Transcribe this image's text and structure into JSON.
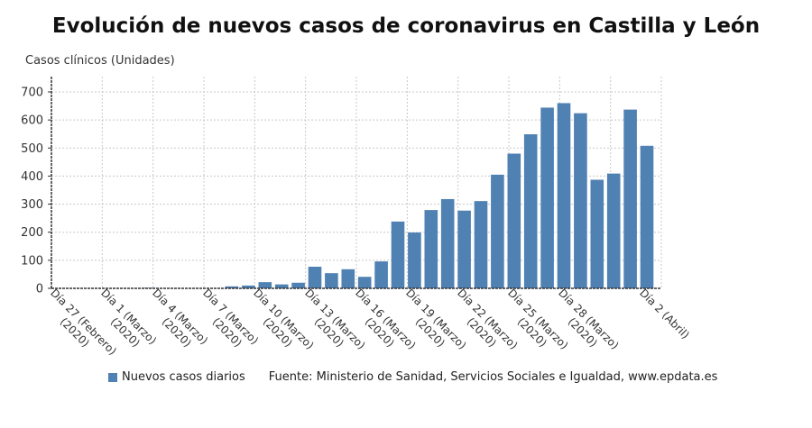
{
  "chart_data": {
    "type": "bar",
    "title": "Evolución de nuevos casos de coronavirus en Castilla y León",
    "ylabel": "Casos clínicos (Unidades)",
    "xlabel": "",
    "ylim": [
      0,
      700
    ],
    "yticks": [
      0,
      100,
      200,
      300,
      400,
      500,
      600,
      700
    ],
    "grid": true,
    "bar_color": "#4f81b3",
    "categories": [
      "27 Feb",
      "28 Feb",
      "29 Feb",
      "1 Mar",
      "2 Mar",
      "3 Mar",
      "4 Mar",
      "5 Mar",
      "6 Mar",
      "7 Mar",
      "8 Mar",
      "9 Mar",
      "10 Mar",
      "11 Mar",
      "12 Mar",
      "13 Mar",
      "14 Mar",
      "15 Mar",
      "16 Mar",
      "17 Mar",
      "18 Mar",
      "19 Mar",
      "20 Mar",
      "21 Mar",
      "22 Mar",
      "23 Mar",
      "24 Mar",
      "25 Mar",
      "26 Mar",
      "27 Mar",
      "28 Mar",
      "29 Mar",
      "30 Mar",
      "31 Mar",
      "1 Abr",
      "2 Abr"
    ],
    "series": [
      {
        "name": "Nuevos casos diarios",
        "values": [
          0,
          0,
          0,
          0,
          0,
          2,
          0,
          0,
          0,
          0,
          7,
          10,
          22,
          14,
          20,
          77,
          54,
          68,
          41,
          96,
          238,
          199,
          279,
          318,
          277,
          311,
          405,
          480,
          549,
          644,
          660,
          624,
          387,
          409,
          637,
          508
        ]
      }
    ],
    "tick_labels": [
      {
        "index": 0,
        "lines": [
          "Día 27 (Febrero)",
          "(2020)"
        ]
      },
      {
        "index": 3,
        "lines": [
          "Día 1 (Marzo)",
          "(2020)"
        ]
      },
      {
        "index": 6,
        "lines": [
          "Día 4 (Marzo)",
          "(2020)"
        ]
      },
      {
        "index": 9,
        "lines": [
          "Día 7 (Marzo)",
          "(2020)"
        ]
      },
      {
        "index": 12,
        "lines": [
          "Día 10 (Marzo)",
          "(2020)"
        ]
      },
      {
        "index": 15,
        "lines": [
          "Día 13 (Marzo)",
          "(2020)"
        ]
      },
      {
        "index": 18,
        "lines": [
          "Día 16 (Marzo)",
          "(2020)"
        ]
      },
      {
        "index": 21,
        "lines": [
          "Día 19 (Marzo)",
          "(2020)"
        ]
      },
      {
        "index": 24,
        "lines": [
          "Día 22 (Marzo)",
          "(2020)"
        ]
      },
      {
        "index": 27,
        "lines": [
          "Día 25 (Marzo)",
          "(2020)"
        ]
      },
      {
        "index": 30,
        "lines": [
          "Día 28 (Marzo)",
          "(2020)"
        ]
      },
      {
        "index": 35,
        "lines": [
          "Día 2 (Abril)"
        ]
      }
    ],
    "legend": {
      "position": "bottom-left",
      "label": "Nuevos casos diarios"
    },
    "source": "Fuente: Ministerio de Sanidad, Servicios Sociales e Igualdad, www.epdata.es"
  }
}
